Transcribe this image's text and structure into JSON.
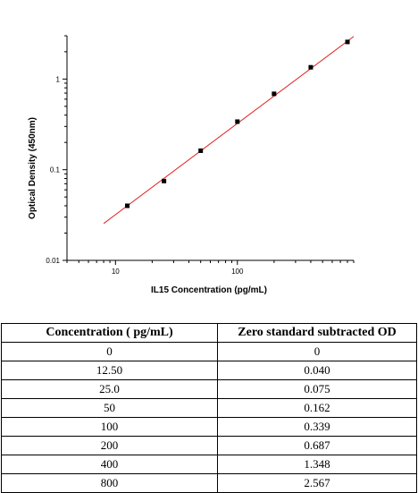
{
  "chart_data": {
    "type": "scatter",
    "x_scale": "log",
    "y_scale": "log",
    "xlabel": "IL15 Concentration (pg/mL)",
    "ylabel": "Optical Density (450nm)",
    "xlim": [
      4,
      900
    ],
    "ylim": [
      0.01,
      3
    ],
    "x_tick_labels": [
      "10",
      "100"
    ],
    "y_tick_labels": [
      "0.01",
      "0.1",
      "1"
    ],
    "points": [
      {
        "x": 12.5,
        "y": 0.04
      },
      {
        "x": 25,
        "y": 0.075
      },
      {
        "x": 50,
        "y": 0.162
      },
      {
        "x": 100,
        "y": 0.339
      },
      {
        "x": 200,
        "y": 0.687
      },
      {
        "x": 400,
        "y": 1.348
      },
      {
        "x": 800,
        "y": 2.567
      }
    ],
    "fit_line": {
      "x": [
        8,
        900
      ],
      "y": [
        0.0255,
        2.95
      ],
      "color": "#e02020"
    },
    "marker_color": "#000000",
    "grid": false,
    "legend": "none"
  },
  "table": {
    "headers": [
      "Concentration ( pg/mL)",
      "Zero standard subtracted OD"
    ],
    "rows": [
      [
        "0",
        "0"
      ],
      [
        "12.50",
        "0.040"
      ],
      [
        "25.0",
        "0.075"
      ],
      [
        "50",
        "0.162"
      ],
      [
        "100",
        "0.339"
      ],
      [
        "200",
        "0.687"
      ],
      [
        "400",
        "1.348"
      ],
      [
        "800",
        "2.567"
      ]
    ]
  }
}
